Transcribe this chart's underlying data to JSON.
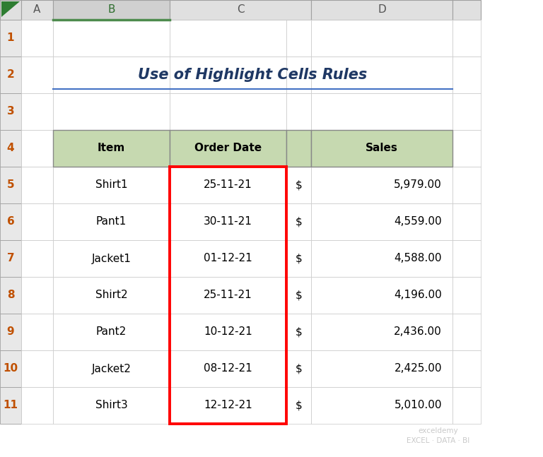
{
  "title": "Use of Highlight Cells Rules",
  "col_headers": [
    "Item",
    "Order Date",
    "Sales"
  ],
  "rows": [
    [
      "Shirt1",
      "25-11-21",
      "$",
      "5,979.00"
    ],
    [
      "Pant1",
      "30-11-21",
      "$",
      "4,559.00"
    ],
    [
      "Jacket1",
      "01-12-21",
      "$",
      "4,588.00"
    ],
    [
      "Shirt2",
      "25-11-21",
      "$",
      "4,196.00"
    ],
    [
      "Pant2",
      "10-12-21",
      "$",
      "2,436.00"
    ],
    [
      "Jacket2",
      "08-12-21",
      "$",
      "2,425.00"
    ],
    [
      "Shirt3",
      "12-12-21",
      "$",
      "5,010.00"
    ]
  ],
  "header_bg": "#c6d9b0",
  "cell_bg": "#ffffff",
  "title_color": "#1f3864",
  "title_underline_color": "#4472c4",
  "red_border_color": "#ff0000",
  "excel_bg": "#ffffff",
  "row_header_bg": "#e8e8e8",
  "col_header_bg": "#e0e0e0",
  "selected_col_bg": "#d0d0d0",
  "selected_col_border": "#4d8b4d",
  "row_num_color": "#c05000",
  "grid_color": "#a0a0a0",
  "watermark_text": "exceldemy\nEXCEL · DATA · BI",
  "watermark_color": "#c0c0c0",
  "triangle_color": "#2e7d32"
}
